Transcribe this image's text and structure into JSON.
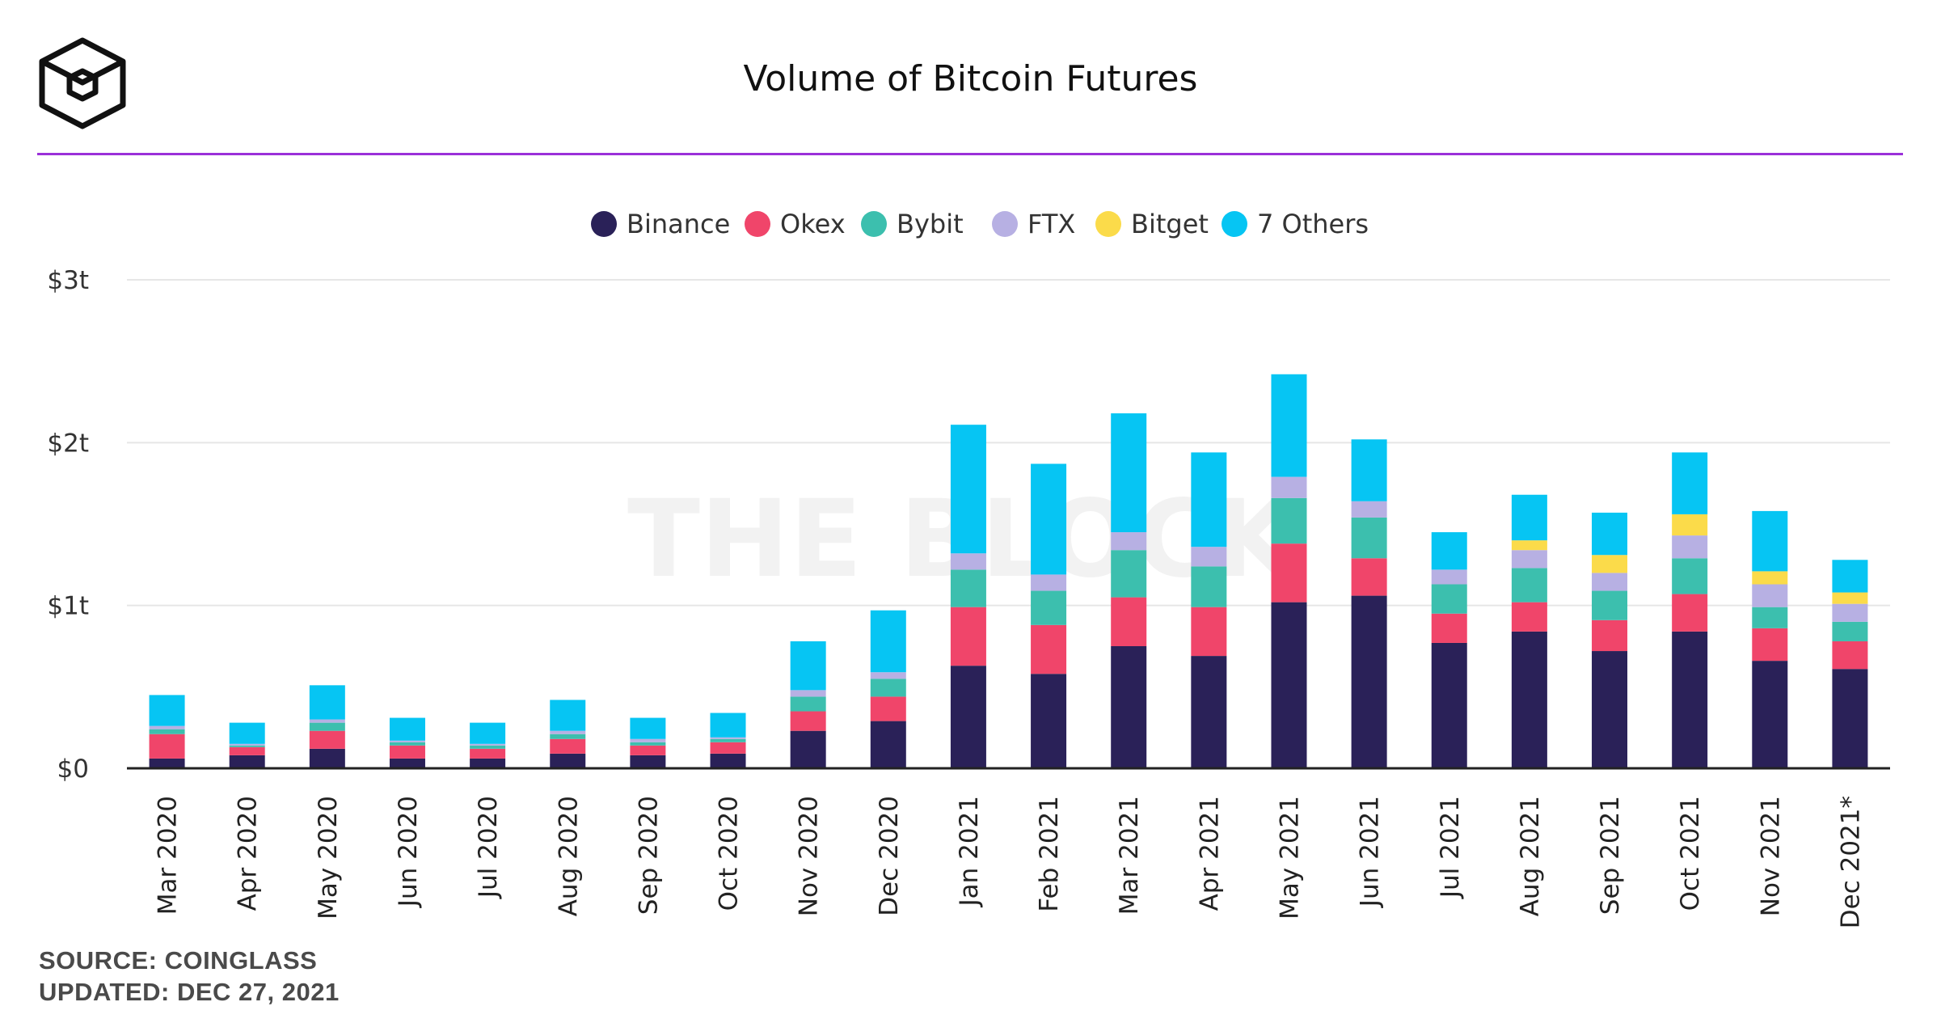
{
  "header": {
    "title": "Volume of Bitcoin Futures",
    "watermark": "THE BLOCK"
  },
  "footer": {
    "source": "SOURCE: COINGLASS",
    "updated": "UPDATED: DEC 27, 2021"
  },
  "colors": {
    "Binance": "#2a2158",
    "Okex": "#f0456a",
    "Bybit": "#3cbfae",
    "FTX": "#b7b0e3",
    "Bitget": "#fbdb4a",
    "7 Others": "#06c5f3",
    "accent_rule": "#9b30d9"
  },
  "chart_data": {
    "type": "bar",
    "stacked": true,
    "title": "Volume of Bitcoin Futures",
    "xlabel": "",
    "ylabel": "",
    "ylim": [
      0,
      3
    ],
    "y_unit": "trillion USD",
    "y_ticks": [
      {
        "value": 0,
        "label": "$0"
      },
      {
        "value": 1,
        "label": "$1t"
      },
      {
        "value": 2,
        "label": "$2t"
      },
      {
        "value": 3,
        "label": "$3t"
      }
    ],
    "grid": true,
    "legend_position": "top-center",
    "categories": [
      "Mar 2020",
      "Apr 2020",
      "May 2020",
      "Jun 2020",
      "Jul 2020",
      "Aug 2020",
      "Sep 2020",
      "Oct 2020",
      "Nov 2020",
      "Dec 2020",
      "Jan 2021",
      "Feb 2021",
      "Mar 2021",
      "Apr 2021",
      "May 2021",
      "Jun 2021",
      "Jul 2021",
      "Aug 2021",
      "Sep 2021",
      "Oct 2021",
      "Nov 2021",
      "Dec 2021*"
    ],
    "series": [
      {
        "name": "Binance",
        "values": [
          0.06,
          0.08,
          0.12,
          0.06,
          0.06,
          0.09,
          0.08,
          0.09,
          0.23,
          0.29,
          0.63,
          0.58,
          0.75,
          0.69,
          1.02,
          1.06,
          0.77,
          0.84,
          0.72,
          0.84,
          0.66,
          0.61
        ]
      },
      {
        "name": "Okex",
        "values": [
          0.15,
          0.05,
          0.11,
          0.08,
          0.06,
          0.09,
          0.06,
          0.07,
          0.12,
          0.15,
          0.36,
          0.3,
          0.3,
          0.3,
          0.36,
          0.23,
          0.18,
          0.18,
          0.19,
          0.23,
          0.2,
          0.17
        ]
      },
      {
        "name": "Bybit",
        "values": [
          0.03,
          0.01,
          0.05,
          0.02,
          0.02,
          0.03,
          0.02,
          0.02,
          0.09,
          0.11,
          0.23,
          0.21,
          0.29,
          0.25,
          0.28,
          0.25,
          0.18,
          0.21,
          0.18,
          0.22,
          0.13,
          0.12
        ]
      },
      {
        "name": "FTX",
        "values": [
          0.02,
          0.01,
          0.02,
          0.01,
          0.01,
          0.02,
          0.02,
          0.01,
          0.04,
          0.04,
          0.1,
          0.1,
          0.11,
          0.12,
          0.13,
          0.1,
          0.09,
          0.11,
          0.11,
          0.14,
          0.14,
          0.11
        ]
      },
      {
        "name": "Bitget",
        "values": [
          0,
          0,
          0,
          0,
          0,
          0,
          0,
          0,
          0,
          0,
          0,
          0,
          0,
          0,
          0,
          0,
          0,
          0.06,
          0.11,
          0.13,
          0.08,
          0.07
        ]
      },
      {
        "name": "7 Others",
        "values": [
          0.19,
          0.13,
          0.21,
          0.14,
          0.13,
          0.19,
          0.13,
          0.15,
          0.3,
          0.38,
          0.79,
          0.68,
          0.73,
          0.58,
          0.63,
          0.38,
          0.23,
          0.28,
          0.26,
          0.38,
          0.37,
          0.2
        ]
      }
    ]
  }
}
